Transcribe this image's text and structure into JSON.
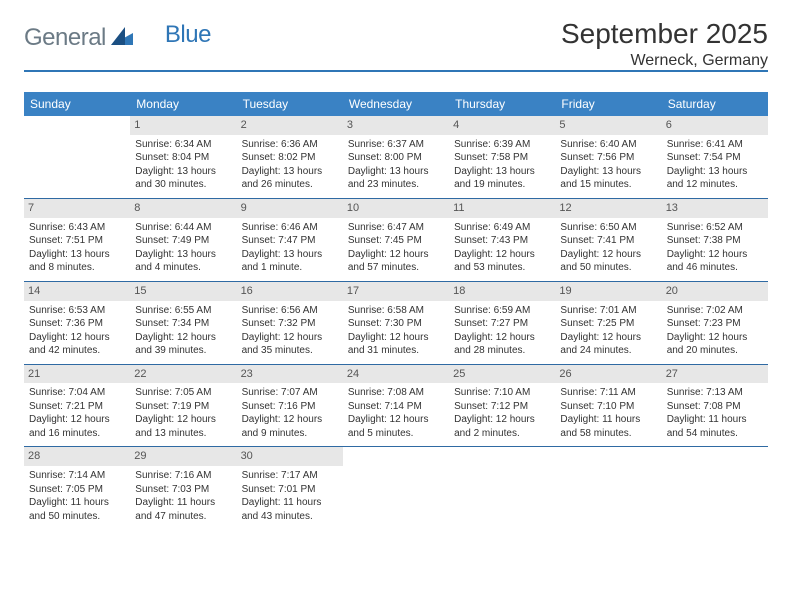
{
  "logo": {
    "part1": "General",
    "part2": "Blue"
  },
  "title": "September 2025",
  "location": "Werneck, Germany",
  "colors": {
    "header_bg": "#3a82c4",
    "header_text": "#ffffff",
    "rule": "#2f6aa3",
    "daynum_bg": "#e7e7e7",
    "text": "#333333",
    "logo_gray": "#6b7a85",
    "logo_blue": "#2f76b6",
    "background": "#ffffff"
  },
  "typography": {
    "title_fontsize": 28,
    "location_fontsize": 16,
    "dow_fontsize": 12,
    "daynum_fontsize": 11,
    "body_fontsize": 10
  },
  "days_of_week": [
    "Sunday",
    "Monday",
    "Tuesday",
    "Wednesday",
    "Thursday",
    "Friday",
    "Saturday"
  ],
  "weeks": [
    [
      {
        "empty": true
      },
      {
        "num": "1",
        "sunrise": "Sunrise: 6:34 AM",
        "sunset": "Sunset: 8:04 PM",
        "daylight1": "Daylight: 13 hours",
        "daylight2": "and 30 minutes."
      },
      {
        "num": "2",
        "sunrise": "Sunrise: 6:36 AM",
        "sunset": "Sunset: 8:02 PM",
        "daylight1": "Daylight: 13 hours",
        "daylight2": "and 26 minutes."
      },
      {
        "num": "3",
        "sunrise": "Sunrise: 6:37 AM",
        "sunset": "Sunset: 8:00 PM",
        "daylight1": "Daylight: 13 hours",
        "daylight2": "and 23 minutes."
      },
      {
        "num": "4",
        "sunrise": "Sunrise: 6:39 AM",
        "sunset": "Sunset: 7:58 PM",
        "daylight1": "Daylight: 13 hours",
        "daylight2": "and 19 minutes."
      },
      {
        "num": "5",
        "sunrise": "Sunrise: 6:40 AM",
        "sunset": "Sunset: 7:56 PM",
        "daylight1": "Daylight: 13 hours",
        "daylight2": "and 15 minutes."
      },
      {
        "num": "6",
        "sunrise": "Sunrise: 6:41 AM",
        "sunset": "Sunset: 7:54 PM",
        "daylight1": "Daylight: 13 hours",
        "daylight2": "and 12 minutes."
      }
    ],
    [
      {
        "num": "7",
        "sunrise": "Sunrise: 6:43 AM",
        "sunset": "Sunset: 7:51 PM",
        "daylight1": "Daylight: 13 hours",
        "daylight2": "and 8 minutes."
      },
      {
        "num": "8",
        "sunrise": "Sunrise: 6:44 AM",
        "sunset": "Sunset: 7:49 PM",
        "daylight1": "Daylight: 13 hours",
        "daylight2": "and 4 minutes."
      },
      {
        "num": "9",
        "sunrise": "Sunrise: 6:46 AM",
        "sunset": "Sunset: 7:47 PM",
        "daylight1": "Daylight: 13 hours",
        "daylight2": "and 1 minute."
      },
      {
        "num": "10",
        "sunrise": "Sunrise: 6:47 AM",
        "sunset": "Sunset: 7:45 PM",
        "daylight1": "Daylight: 12 hours",
        "daylight2": "and 57 minutes."
      },
      {
        "num": "11",
        "sunrise": "Sunrise: 6:49 AM",
        "sunset": "Sunset: 7:43 PM",
        "daylight1": "Daylight: 12 hours",
        "daylight2": "and 53 minutes."
      },
      {
        "num": "12",
        "sunrise": "Sunrise: 6:50 AM",
        "sunset": "Sunset: 7:41 PM",
        "daylight1": "Daylight: 12 hours",
        "daylight2": "and 50 minutes."
      },
      {
        "num": "13",
        "sunrise": "Sunrise: 6:52 AM",
        "sunset": "Sunset: 7:38 PM",
        "daylight1": "Daylight: 12 hours",
        "daylight2": "and 46 minutes."
      }
    ],
    [
      {
        "num": "14",
        "sunrise": "Sunrise: 6:53 AM",
        "sunset": "Sunset: 7:36 PM",
        "daylight1": "Daylight: 12 hours",
        "daylight2": "and 42 minutes."
      },
      {
        "num": "15",
        "sunrise": "Sunrise: 6:55 AM",
        "sunset": "Sunset: 7:34 PM",
        "daylight1": "Daylight: 12 hours",
        "daylight2": "and 39 minutes."
      },
      {
        "num": "16",
        "sunrise": "Sunrise: 6:56 AM",
        "sunset": "Sunset: 7:32 PM",
        "daylight1": "Daylight: 12 hours",
        "daylight2": "and 35 minutes."
      },
      {
        "num": "17",
        "sunrise": "Sunrise: 6:58 AM",
        "sunset": "Sunset: 7:30 PM",
        "daylight1": "Daylight: 12 hours",
        "daylight2": "and 31 minutes."
      },
      {
        "num": "18",
        "sunrise": "Sunrise: 6:59 AM",
        "sunset": "Sunset: 7:27 PM",
        "daylight1": "Daylight: 12 hours",
        "daylight2": "and 28 minutes."
      },
      {
        "num": "19",
        "sunrise": "Sunrise: 7:01 AM",
        "sunset": "Sunset: 7:25 PM",
        "daylight1": "Daylight: 12 hours",
        "daylight2": "and 24 minutes."
      },
      {
        "num": "20",
        "sunrise": "Sunrise: 7:02 AM",
        "sunset": "Sunset: 7:23 PM",
        "daylight1": "Daylight: 12 hours",
        "daylight2": "and 20 minutes."
      }
    ],
    [
      {
        "num": "21",
        "sunrise": "Sunrise: 7:04 AM",
        "sunset": "Sunset: 7:21 PM",
        "daylight1": "Daylight: 12 hours",
        "daylight2": "and 16 minutes."
      },
      {
        "num": "22",
        "sunrise": "Sunrise: 7:05 AM",
        "sunset": "Sunset: 7:19 PM",
        "daylight1": "Daylight: 12 hours",
        "daylight2": "and 13 minutes."
      },
      {
        "num": "23",
        "sunrise": "Sunrise: 7:07 AM",
        "sunset": "Sunset: 7:16 PM",
        "daylight1": "Daylight: 12 hours",
        "daylight2": "and 9 minutes."
      },
      {
        "num": "24",
        "sunrise": "Sunrise: 7:08 AM",
        "sunset": "Sunset: 7:14 PM",
        "daylight1": "Daylight: 12 hours",
        "daylight2": "and 5 minutes."
      },
      {
        "num": "25",
        "sunrise": "Sunrise: 7:10 AM",
        "sunset": "Sunset: 7:12 PM",
        "daylight1": "Daylight: 12 hours",
        "daylight2": "and 2 minutes."
      },
      {
        "num": "26",
        "sunrise": "Sunrise: 7:11 AM",
        "sunset": "Sunset: 7:10 PM",
        "daylight1": "Daylight: 11 hours",
        "daylight2": "and 58 minutes."
      },
      {
        "num": "27",
        "sunrise": "Sunrise: 7:13 AM",
        "sunset": "Sunset: 7:08 PM",
        "daylight1": "Daylight: 11 hours",
        "daylight2": "and 54 minutes."
      }
    ],
    [
      {
        "num": "28",
        "sunrise": "Sunrise: 7:14 AM",
        "sunset": "Sunset: 7:05 PM",
        "daylight1": "Daylight: 11 hours",
        "daylight2": "and 50 minutes."
      },
      {
        "num": "29",
        "sunrise": "Sunrise: 7:16 AM",
        "sunset": "Sunset: 7:03 PM",
        "daylight1": "Daylight: 11 hours",
        "daylight2": "and 47 minutes."
      },
      {
        "num": "30",
        "sunrise": "Sunrise: 7:17 AM",
        "sunset": "Sunset: 7:01 PM",
        "daylight1": "Daylight: 11 hours",
        "daylight2": "and 43 minutes."
      },
      {
        "empty": true
      },
      {
        "empty": true
      },
      {
        "empty": true
      },
      {
        "empty": true
      }
    ]
  ]
}
